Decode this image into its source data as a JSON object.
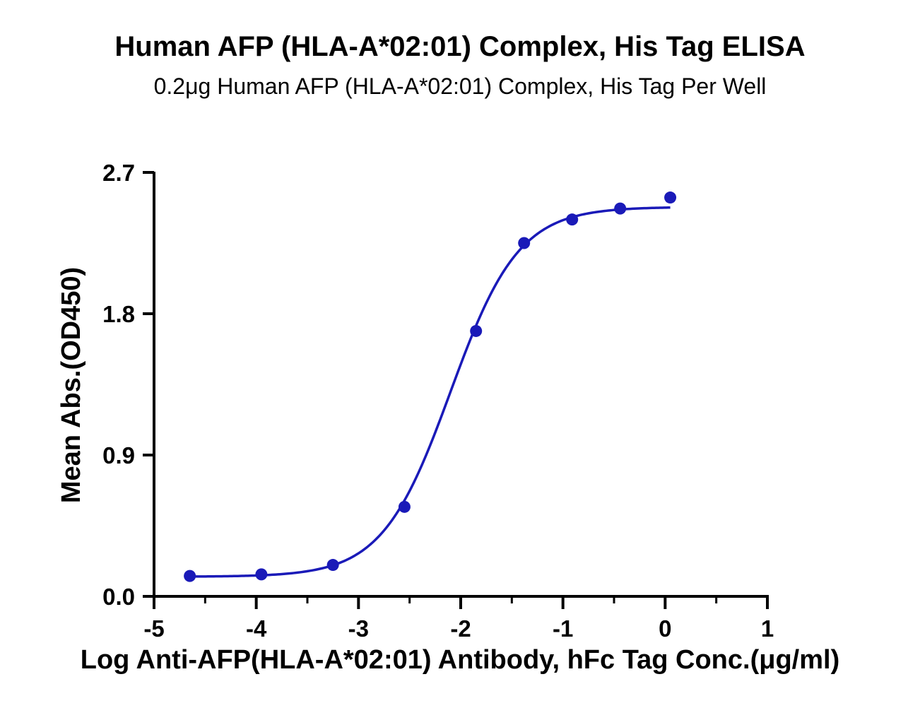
{
  "chart_data": {
    "type": "scatter",
    "title": "Human AFP (HLA-A*02:01) Complex, His Tag ELISA",
    "subtitle": "0.2μg Human AFP (HLA-A*02:01) Complex, His Tag Per Well",
    "xlabel": "Log Anti-AFP(HLA-A*02:01) Antibody, hFc Tag Conc.(μg/ml)",
    "ylabel": "Mean Abs.(OD450)",
    "xlim": [
      -5,
      1
    ],
    "ylim": [
      0,
      2.7
    ],
    "x_ticks": [
      "-5",
      "-4",
      "-3",
      "-2",
      "-1",
      "0",
      "1"
    ],
    "y_ticks": [
      "0.0",
      "0.9",
      "1.8",
      "2.7"
    ],
    "grid": false,
    "series": [
      {
        "color": "#1a1ab8",
        "x": [
          -4.65,
          -3.95,
          -3.25,
          -2.55,
          -1.85,
          -1.38,
          -0.91,
          -0.44,
          0.05
        ],
        "y": [
          0.13,
          0.14,
          0.2,
          0.57,
          1.69,
          2.25,
          2.4,
          2.47,
          2.54
        ]
      }
    ],
    "fit_curve": {
      "type": "4PL",
      "bottom": 0.125,
      "top": 2.48,
      "log_ec50": -2.1,
      "hill": 1.3,
      "x_range": [
        -4.65,
        0.05
      ],
      "color": "#1a1ab8"
    }
  }
}
